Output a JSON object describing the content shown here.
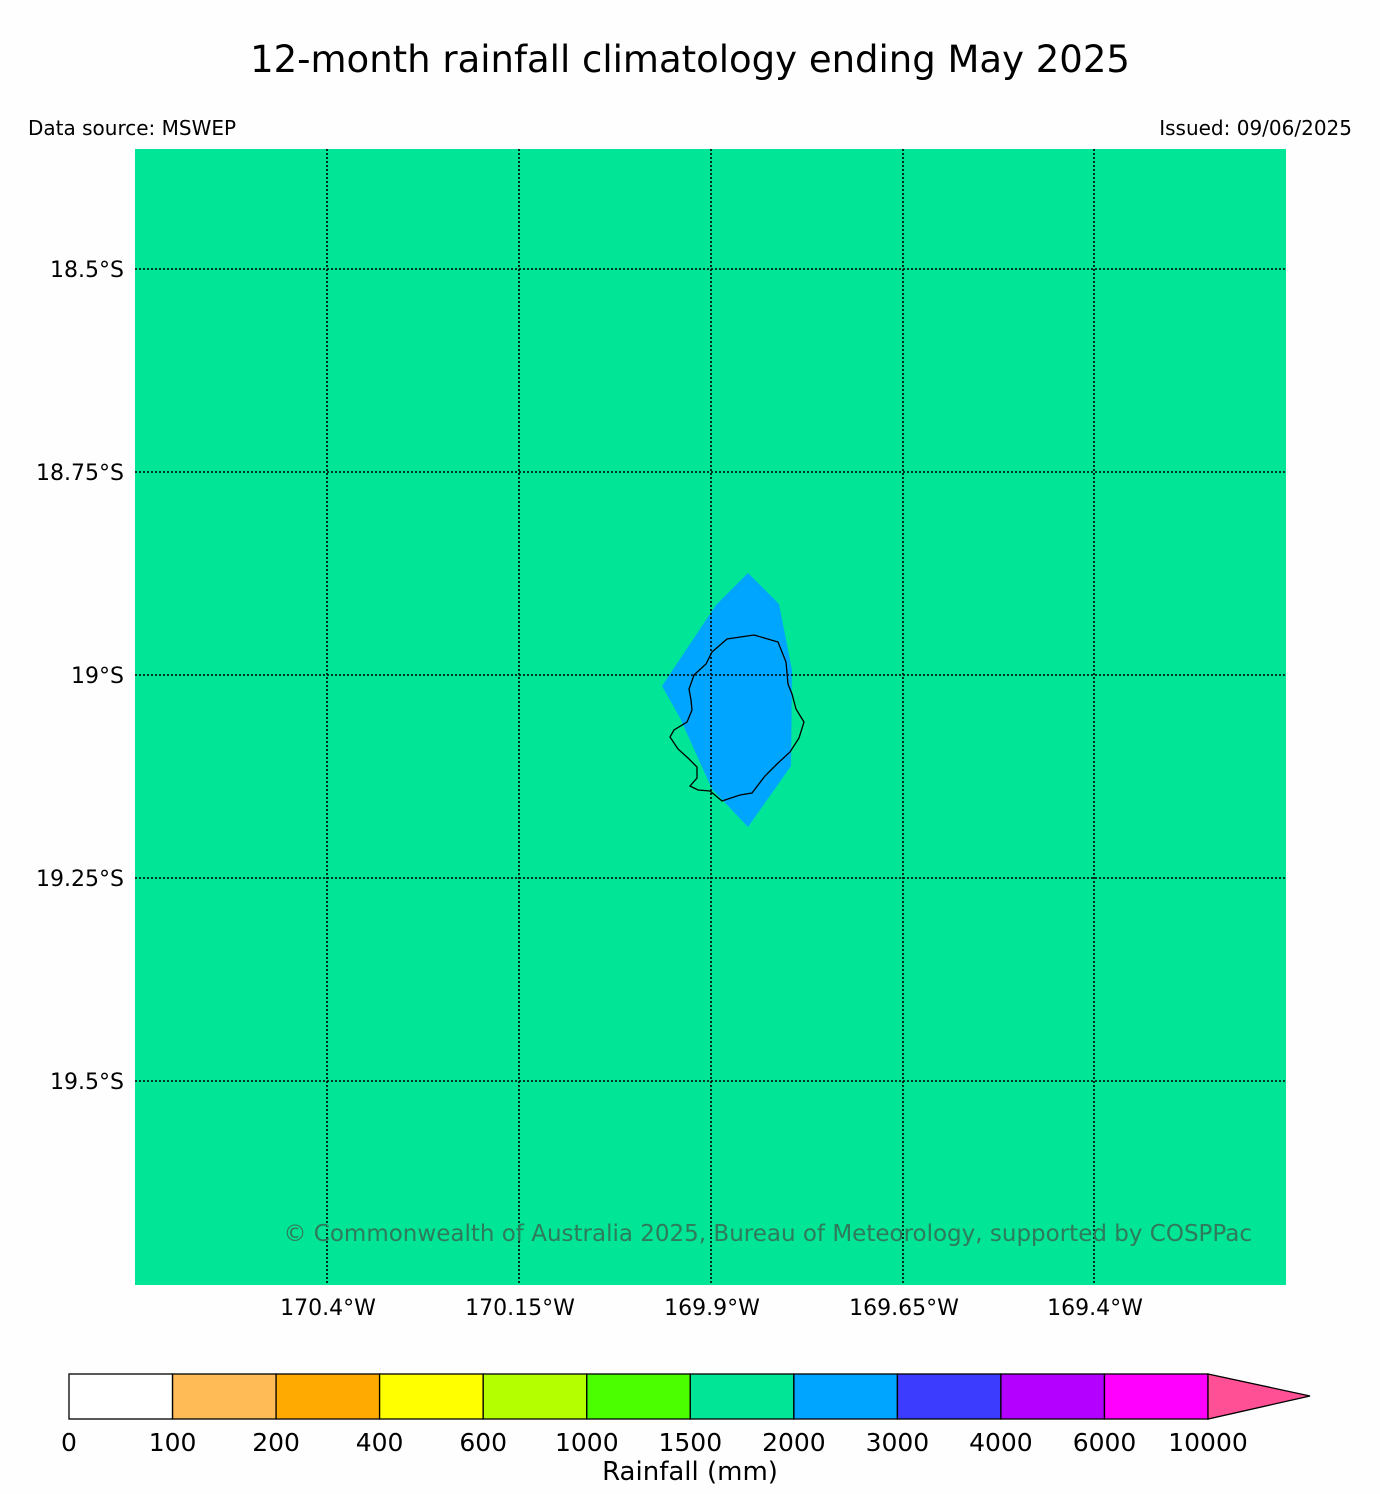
{
  "title": "12-month rainfall climatology ending May 2025",
  "data_source": "Data source: MSWEP",
  "issued": "Issued: 09/06/2025",
  "copyright": "© Commonwealth of Australia 2025, Bureau of Meteorology, supported by COSPPac",
  "map": {
    "background_color": "#00e696",
    "island_fill_color": "#00a5ff",
    "lat_labels": [
      "18.5°S",
      "18.75°S",
      "19°S",
      "19.25°S",
      "19.5°S"
    ],
    "lon_labels": [
      "170.4°W",
      "170.15°W",
      "169.9°W",
      "169.65°W",
      "169.4°W"
    ]
  },
  "colorbar": {
    "label": "Rainfall (mm)",
    "ticks": [
      "0",
      "100",
      "200",
      "400",
      "600",
      "1000",
      "1500",
      "2000",
      "3000",
      "4000",
      "6000",
      "10000"
    ],
    "colors": [
      "#ffffff",
      "#ffbb55",
      "#ffaa00",
      "#ffff00",
      "#b4ff00",
      "#4cff00",
      "#00e696",
      "#00a5ff",
      "#3c3cff",
      "#b400ff",
      "#ff00ff"
    ],
    "extend_color": "#ff5096"
  }
}
